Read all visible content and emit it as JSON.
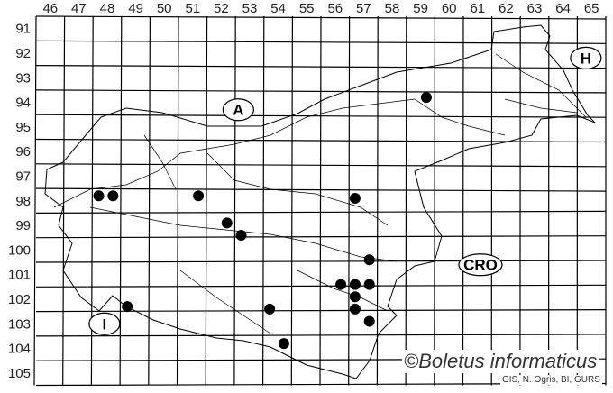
{
  "map": {
    "columns": [
      "46",
      "47",
      "48",
      "49",
      "50",
      "51",
      "52",
      "53",
      "54",
      "55",
      "56",
      "57",
      "58",
      "59",
      "60",
      "61",
      "62",
      "63",
      "64",
      "65"
    ],
    "rows": [
      "91",
      "92",
      "93",
      "94",
      "95",
      "96",
      "97",
      "98",
      "99",
      "100",
      "101",
      "102",
      "103",
      "104",
      "105"
    ],
    "country_labels": [
      {
        "text": "A",
        "col": 52.6,
        "row": 94.3
      },
      {
        "text": "H",
        "col": 64.8,
        "row": 92.2
      },
      {
        "text": "CRO",
        "col": 61.1,
        "row": 100.6
      },
      {
        "text": "I",
        "col": 47.9,
        "row": 103.0
      }
    ],
    "occurrences": [
      {
        "col": 47.7,
        "row": 97.8
      },
      {
        "col": 48.2,
        "row": 97.8
      },
      {
        "col": 51.2,
        "row": 97.8
      },
      {
        "col": 52.2,
        "row": 98.9
      },
      {
        "col": 52.7,
        "row": 99.4
      },
      {
        "col": 56.7,
        "row": 97.9
      },
      {
        "col": 57.2,
        "row": 100.4
      },
      {
        "col": 56.2,
        "row": 101.4
      },
      {
        "col": 56.7,
        "row": 101.4
      },
      {
        "col": 57.2,
        "row": 101.4
      },
      {
        "col": 56.7,
        "row": 101.9
      },
      {
        "col": 56.7,
        "row": 102.4
      },
      {
        "col": 57.2,
        "row": 102.9
      },
      {
        "col": 48.7,
        "row": 102.3
      },
      {
        "col": 53.7,
        "row": 102.4
      },
      {
        "col": 54.2,
        "row": 103.8
      },
      {
        "col": 59.2,
        "row": 93.8
      }
    ],
    "dot_color": "#000000"
  },
  "watermark": "©Boletus informaticus",
  "credit": "GIS, N. Ogris, BI, GURS"
}
